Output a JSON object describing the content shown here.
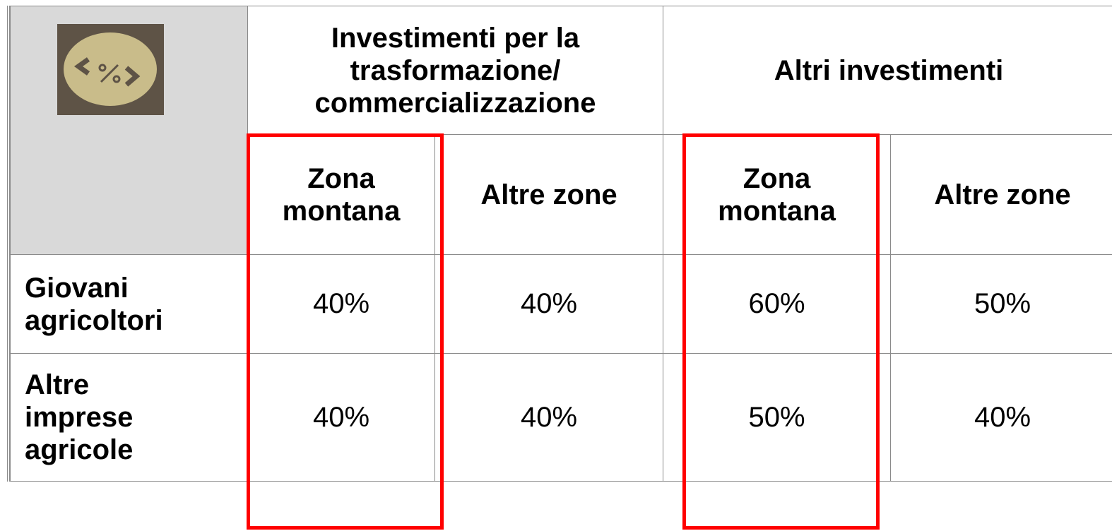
{
  "table": {
    "column_groups": [
      "Investimenti per la trasformazione/ commercializzazione",
      "Altri investimenti"
    ],
    "subheaders": [
      "Zona montana",
      "Altre zone",
      "Zona montana",
      "Altre zone"
    ],
    "rows": [
      {
        "label": "Giovani agricoltori",
        "cells": [
          "40%",
          "40%",
          "60%",
          "50%"
        ]
      },
      {
        "label": "Altre imprese agricole",
        "cells": [
          "40%",
          "40%",
          "50%",
          "40%"
        ]
      }
    ]
  }
}
